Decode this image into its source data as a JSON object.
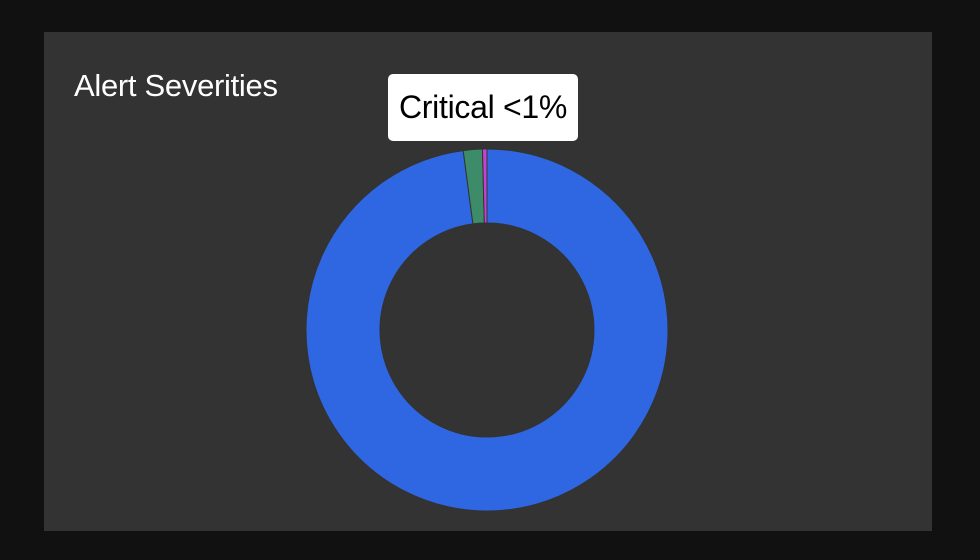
{
  "panel": {
    "title": "Alert Severities"
  },
  "tooltip": {
    "label": "Critical <1%"
  },
  "chart_data": {
    "type": "pie",
    "variant": "donut",
    "title": "Alert Severities",
    "slices": [
      {
        "name": "",
        "value": 97.9,
        "color": "#2f67e3"
      },
      {
        "name": "",
        "value": 1.7,
        "color": "#3c8b69"
      },
      {
        "name": "Critical",
        "value": 0.4,
        "color": "#c93fd0"
      }
    ],
    "legend": "none"
  }
}
